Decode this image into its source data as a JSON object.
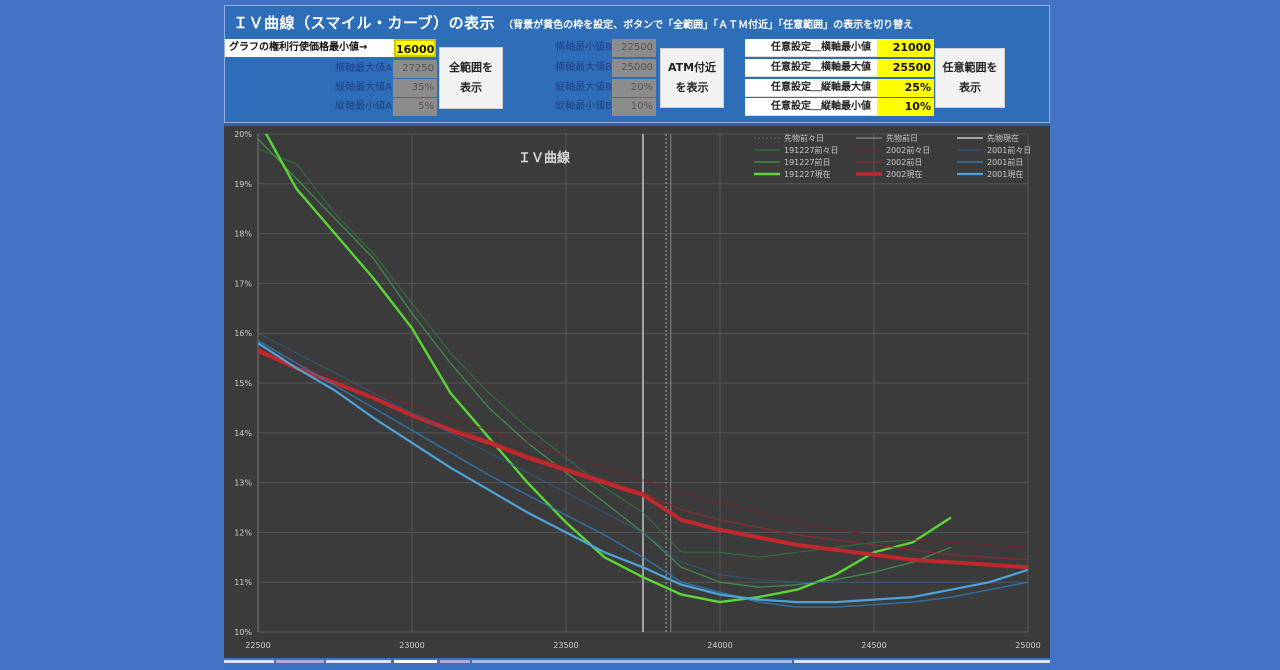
{
  "header": {
    "title": "ＩＶ曲線（スマイル・カーブ）の表示",
    "subtitle": "（背景が黄色の枠を設定、ボタンで「全範囲」「ＡＴＭ付近」「任意範囲」の表示を切り替え"
  },
  "panelA": {
    "min_strike_label": "グラフの権利行使価格最小値→",
    "min_strike_value": "16000",
    "rows": [
      {
        "label": "横軸最大値A",
        "value": "27250"
      },
      {
        "label": "縦軸最大値A",
        "value": "35%"
      },
      {
        "label": "縦軸最小値A",
        "value": "5%"
      }
    ],
    "button_line1": "全範囲を",
    "button_line2": "表示"
  },
  "panelB": {
    "rows": [
      {
        "label": "横軸最小値B",
        "value": "22500"
      },
      {
        "label": "横軸最大値B",
        "value": "25000"
      },
      {
        "label": "縦軸最大値B",
        "value": "20%"
      },
      {
        "label": "縦軸最小値B",
        "value": "10%"
      }
    ],
    "button_line1": "ATM付近",
    "button_line2": "を表示"
  },
  "panelC": {
    "rows": [
      {
        "label": "任意設定＿横軸最小値",
        "value": "21000"
      },
      {
        "label": "任意設定＿横軸最大値",
        "value": "25500"
      },
      {
        "label": "任意設定＿縦軸最大値",
        "value": "25%"
      },
      {
        "label": "任意設定＿縦軸最小値",
        "value": "10%"
      }
    ],
    "button_line1": "任意範囲を",
    "button_line2": "表示"
  },
  "colors": {
    "background": "#4472c4",
    "header": "#2e6db7",
    "input_yellow": "#ffff00",
    "chart_bg": "#3b3b3b",
    "green_now": "#5cd636",
    "red_now": "#c0282d",
    "blue_now": "#4da3d9"
  },
  "chart_data": {
    "type": "line",
    "title": "ＩＶ曲線",
    "xlabel": "",
    "ylabel": "",
    "xlim": [
      22500,
      25000
    ],
    "ylim": [
      10,
      20
    ],
    "x_ticks": [
      "22500",
      "23000",
      "23500",
      "24000",
      "24500",
      "25000"
    ],
    "y_ticks": [
      "10%",
      "11%",
      "12%",
      "13%",
      "14%",
      "15%",
      "16%",
      "17%",
      "18%",
      "19%",
      "20%"
    ],
    "grid": true,
    "legend_position": "top-right",
    "legend": [
      "先物前々日",
      "先物前日",
      "先物現在",
      "191227前々日",
      "2002前々日",
      "2001前々日",
      "191227前日",
      "2002前日",
      "2001前日",
      "191227現在",
      "2002現在",
      "2001現在"
    ],
    "vertical_markers": [
      {
        "name": "先物現在",
        "x": 23750,
        "style": "solid"
      },
      {
        "name": "先物前々日",
        "x": 23825,
        "style": "dotted"
      },
      {
        "name": "先物前日",
        "x": 23840,
        "style": "thin"
      }
    ],
    "x": [
      22500,
      22625,
      22750,
      22875,
      23000,
      23125,
      23250,
      23375,
      23500,
      23625,
      23750,
      23875,
      24000,
      24125,
      24250,
      24375,
      24500,
      24625,
      24750,
      24875,
      25000
    ],
    "series": [
      {
        "name": "191227前々日",
        "color": "#2f7d3a",
        "width": 1,
        "values": [
          19.7,
          19.4,
          18.4,
          17.6,
          16.6,
          15.6,
          14.8,
          14.1,
          13.5,
          12.9,
          12.4,
          11.6,
          11.6,
          11.5,
          11.6,
          11.7,
          11.8,
          11.85,
          null,
          null,
          null
        ]
      },
      {
        "name": "191227前日",
        "color": "#3f9a4d",
        "width": 1.3,
        "values": [
          19.9,
          19.1,
          18.3,
          17.5,
          16.4,
          15.4,
          14.5,
          13.8,
          13.2,
          12.6,
          12.0,
          11.3,
          11.0,
          10.9,
          10.95,
          11.05,
          11.2,
          11.4,
          11.7,
          null,
          null
        ]
      },
      {
        "name": "191227現在",
        "color": "#5cd636",
        "width": 2.4,
        "values": [
          20.3,
          18.9,
          18.0,
          17.1,
          16.1,
          14.8,
          13.9,
          13.0,
          12.2,
          11.5,
          11.1,
          10.75,
          10.6,
          10.7,
          10.85,
          11.15,
          11.6,
          11.8,
          12.3,
          null,
          null
        ]
      },
      {
        "name": "2002前々日",
        "color": "#7a2428",
        "width": 1,
        "values": [
          15.7,
          15.4,
          15.1,
          14.85,
          14.55,
          14.3,
          14.05,
          13.8,
          13.55,
          13.3,
          13.05,
          12.8,
          12.6,
          12.4,
          12.2,
          12.05,
          11.95,
          11.85,
          11.8,
          11.75,
          11.7
        ]
      },
      {
        "name": "2002前日",
        "color": "#942a2e",
        "width": 1.3,
        "values": [
          15.6,
          15.3,
          15.0,
          14.7,
          14.4,
          14.1,
          13.85,
          13.55,
          13.3,
          13.05,
          12.8,
          12.45,
          12.25,
          12.1,
          11.95,
          11.85,
          11.75,
          11.65,
          11.55,
          11.5,
          11.45
        ]
      },
      {
        "name": "2002現在",
        "color": "#c0282d",
        "width": 4,
        "values": [
          15.65,
          15.3,
          15.0,
          14.7,
          14.35,
          14.05,
          13.8,
          13.5,
          13.25,
          13.0,
          12.75,
          12.25,
          12.05,
          11.9,
          11.75,
          11.65,
          11.55,
          11.45,
          11.4,
          11.35,
          11.3
        ]
      },
      {
        "name": "2001前々日",
        "color": "#2b5a86",
        "width": 1,
        "values": [
          16.0,
          15.6,
          15.2,
          14.8,
          14.4,
          14.0,
          13.6,
          13.2,
          12.8,
          12.4,
          12.0,
          11.4,
          11.15,
          11.05,
          11.0,
          11.0,
          11.0,
          11.0,
          11.0,
          11.0,
          11.0
        ]
      },
      {
        "name": "2001前日",
        "color": "#2f78b3",
        "width": 1.5,
        "values": [
          15.85,
          15.4,
          14.95,
          14.5,
          14.05,
          13.6,
          13.15,
          12.75,
          12.35,
          11.95,
          11.5,
          11.0,
          10.8,
          10.6,
          10.5,
          10.5,
          10.55,
          10.6,
          10.7,
          10.85,
          11.0
        ]
      },
      {
        "name": "2001現在",
        "color": "#4da3d9",
        "width": 2.2,
        "values": [
          15.8,
          15.3,
          14.85,
          14.3,
          13.8,
          13.3,
          12.85,
          12.4,
          12.0,
          11.6,
          11.3,
          10.95,
          10.75,
          10.65,
          10.6,
          10.6,
          10.65,
          10.7,
          10.85,
          11.0,
          11.25
        ]
      }
    ]
  }
}
